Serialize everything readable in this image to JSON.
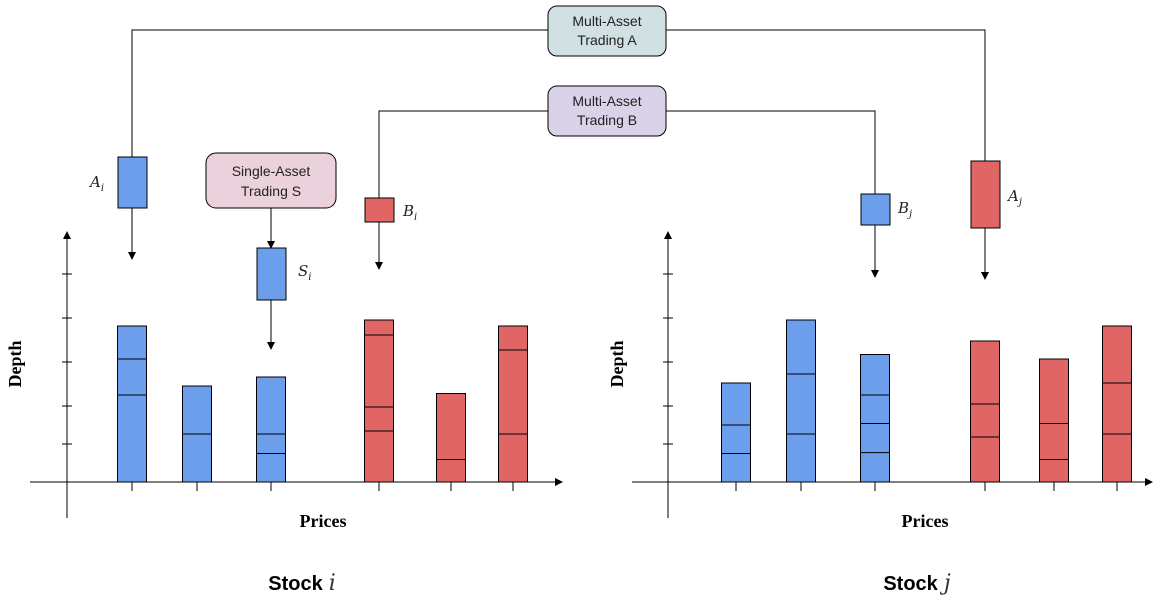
{
  "colors": {
    "bid": "#6d9eeb",
    "ask": "#e06666",
    "trading_a": "#d0e0e3",
    "trading_b": "#d9d2e9",
    "trading_s": "#ead1dc",
    "stroke": "#000000"
  },
  "boxes": {
    "trading_a": {
      "line1": "Multi-Asset",
      "line2": "Trading A"
    },
    "trading_b": {
      "line1": "Multi-Asset",
      "line2": "Trading B"
    },
    "trading_s": {
      "line1": "Single-Asset",
      "line2": "Trading S"
    }
  },
  "orders": {
    "a_i": {
      "main": "A",
      "sub": "i"
    },
    "s_i": {
      "main": "S",
      "sub": "i"
    },
    "b_i": {
      "main": "B",
      "sub": "i"
    },
    "b_j": {
      "main": "B",
      "sub": "j"
    },
    "a_j": {
      "main": "A",
      "sub": "j"
    }
  },
  "charts": {
    "left": {
      "ylabel": "Depth",
      "xlabel": "Prices",
      "title": "Stock",
      "title_var": "i",
      "bars": [
        {
          "side": "bid",
          "segments": [
            0,
            2.9,
            4.1,
            5.2
          ]
        },
        {
          "side": "bid",
          "segments": [
            0,
            1.6,
            3.2
          ]
        },
        {
          "side": "bid",
          "segments": [
            0,
            0.95,
            1.6,
            3.5
          ]
        },
        {
          "side": "ask",
          "segments": [
            0,
            1.7,
            2.5,
            4.9,
            5.4
          ]
        },
        {
          "side": "ask",
          "segments": [
            0,
            0.75,
            2.95
          ]
        },
        {
          "side": "ask",
          "segments": [
            0,
            1.6,
            4.4,
            5.2
          ]
        }
      ]
    },
    "right": {
      "ylabel": "Depth",
      "xlabel": "Prices",
      "title": "Stock",
      "title_var": "j",
      "bars": [
        {
          "side": "bid",
          "segments": [
            0,
            0.95,
            1.9,
            3.3
          ]
        },
        {
          "side": "bid",
          "segments": [
            0,
            1.6,
            3.6,
            5.4
          ]
        },
        {
          "side": "bid",
          "segments": [
            0,
            0.98,
            1.95,
            2.9,
            4.25
          ]
        },
        {
          "side": "ask",
          "segments": [
            0,
            1.5,
            2.6,
            4.7
          ]
        },
        {
          "side": "ask",
          "segments": [
            0,
            0.75,
            1.95,
            4.1
          ]
        },
        {
          "side": "ask",
          "segments": [
            0,
            1.6,
            3.3,
            5.2
          ]
        }
      ]
    }
  }
}
